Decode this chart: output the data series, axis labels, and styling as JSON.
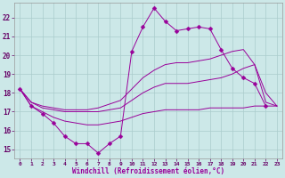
{
  "background_color": "#cce8e8",
  "grid_color": "#aacccc",
  "line_color": "#990099",
  "xlabel": "Windchill (Refroidissement éolien,°C)",
  "ylabel_ticks": [
    15,
    16,
    17,
    18,
    19,
    20,
    21,
    22
  ],
  "xlim": [
    -0.5,
    23.5
  ],
  "ylim": [
    14.5,
    22.8
  ],
  "xticks": [
    0,
    1,
    2,
    3,
    4,
    5,
    6,
    7,
    8,
    9,
    10,
    11,
    12,
    13,
    14,
    15,
    16,
    17,
    18,
    19,
    20,
    21,
    22,
    23
  ],
  "series": [
    {
      "x": [
        0,
        1,
        2,
        3,
        4,
        5,
        6,
        7,
        8,
        9,
        10,
        11,
        12,
        13,
        14,
        15,
        16,
        17,
        18,
        19,
        20,
        21,
        22
      ],
      "y": [
        18.2,
        17.3,
        16.9,
        16.4,
        15.7,
        15.3,
        15.3,
        14.8,
        15.3,
        15.7,
        20.2,
        21.5,
        22.5,
        21.8,
        21.3,
        21.4,
        21.5,
        21.4,
        20.3,
        19.3,
        18.8,
        18.5,
        17.3
      ],
      "marker": "D",
      "markersize": 2.5
    },
    {
      "x": [
        0,
        1,
        2,
        3,
        4,
        5,
        6,
        7,
        8,
        9,
        10,
        11,
        12,
        13,
        14,
        15,
        16,
        17,
        18,
        19,
        20,
        21,
        22,
        23
      ],
      "y": [
        18.2,
        17.3,
        17.0,
        16.7,
        16.5,
        16.4,
        16.3,
        16.3,
        16.4,
        16.5,
        16.7,
        16.9,
        17.0,
        17.1,
        17.1,
        17.1,
        17.1,
        17.2,
        17.2,
        17.2,
        17.2,
        17.3,
        17.3,
        17.3
      ],
      "marker": null,
      "markersize": 0
    },
    {
      "x": [
        0,
        1,
        2,
        3,
        4,
        5,
        6,
        7,
        8,
        9,
        10,
        11,
        12,
        13,
        14,
        15,
        16,
        17,
        18,
        19,
        20,
        21,
        22,
        23
      ],
      "y": [
        18.2,
        17.5,
        17.2,
        17.1,
        17.0,
        17.0,
        17.0,
        17.0,
        17.1,
        17.2,
        17.6,
        18.0,
        18.3,
        18.5,
        18.5,
        18.5,
        18.6,
        18.7,
        18.8,
        19.0,
        19.3,
        19.5,
        17.5,
        17.3
      ],
      "marker": null,
      "markersize": 0
    },
    {
      "x": [
        0,
        1,
        2,
        3,
        4,
        5,
        6,
        7,
        8,
        9,
        10,
        11,
        12,
        13,
        14,
        15,
        16,
        17,
        18,
        19,
        20,
        21,
        22,
        23
      ],
      "y": [
        18.2,
        17.5,
        17.3,
        17.2,
        17.1,
        17.1,
        17.1,
        17.2,
        17.4,
        17.6,
        18.2,
        18.8,
        19.2,
        19.5,
        19.6,
        19.6,
        19.7,
        19.8,
        20.0,
        20.2,
        20.3,
        19.5,
        18.0,
        17.3
      ],
      "marker": null,
      "markersize": 0
    }
  ]
}
